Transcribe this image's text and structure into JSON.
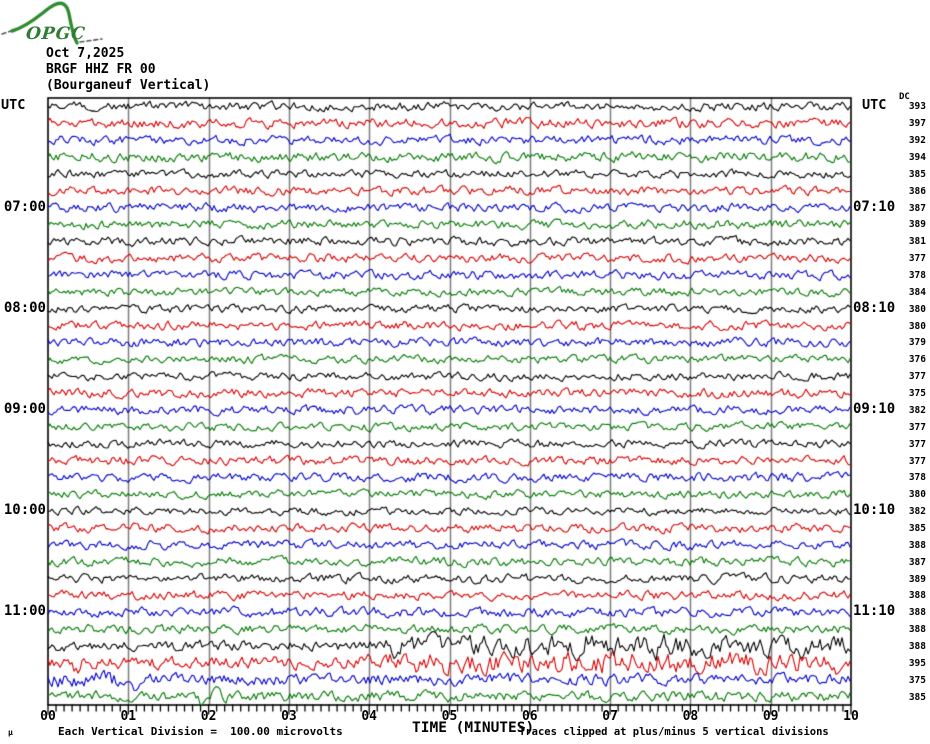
{
  "header": {
    "logo": "OPGC",
    "date": "Oct 7,2025",
    "station": "BRGF HHZ FR 00",
    "station_desc": "(Bourganeuf Vertical)"
  },
  "axis": {
    "utc_left": "UTC",
    "utc_right": "UTC",
    "dc_header": "DC",
    "x_title": "TIME (MINUTES)",
    "x_tick_labels": [
      "00",
      "01",
      "02",
      "03",
      "04",
      "05",
      "06",
      "07",
      "08",
      "09",
      "10"
    ],
    "left_hour_labels": [
      {
        "row": 7,
        "label": "07:00"
      },
      {
        "row": 13,
        "label": "08:00"
      },
      {
        "row": 19,
        "label": "09:00"
      },
      {
        "row": 25,
        "label": "10:00"
      },
      {
        "row": 31,
        "label": "11:00"
      }
    ],
    "right_hour_labels": [
      {
        "row": 7,
        "label": "07:10"
      },
      {
        "row": 13,
        "label": "08:10"
      },
      {
        "row": 19,
        "label": "09:10"
      },
      {
        "row": 25,
        "label": "10:10"
      },
      {
        "row": 31,
        "label": "11:10"
      }
    ]
  },
  "footer": {
    "micro_mark": "µ",
    "scale_note": "Each Vertical Division =  100.00 microvolts",
    "clip_note": "Traces clipped at plus/minus 5 vertical divisions"
  },
  "colors": {
    "black": "#000000",
    "red": "#d80000",
    "blue": "#0000cc",
    "green": "#007a00",
    "grid": "#7d7d7d",
    "border": "#000000",
    "logo_green": "#2e8b2e"
  },
  "chart_data": {
    "type": "line",
    "title": "BRGF HHZ FR 00 (Bourganeuf Vertical) helicorder, Oct 7,2025",
    "xlabel": "TIME (MINUTES)",
    "x_range_minutes": [
      0,
      10
    ],
    "minutes_per_row": 10,
    "rows_total": 36,
    "scale": "Each Vertical Division = 100.00 microvolts",
    "clipping": "Traces clipped at plus/minus 5 vertical divisions",
    "rows": [
      {
        "start": "06:00",
        "end": "06:10",
        "color": "black",
        "dc": 393,
        "amp": 1.0
      },
      {
        "start": "06:10",
        "end": "06:20",
        "color": "red",
        "dc": 397,
        "amp": 1.1
      },
      {
        "start": "06:20",
        "end": "06:30",
        "color": "blue",
        "dc": 392,
        "amp": 1.0
      },
      {
        "start": "06:30",
        "end": "06:40",
        "color": "green",
        "dc": 394,
        "amp": 1.1
      },
      {
        "start": "06:40",
        "end": "06:50",
        "color": "black",
        "dc": 385,
        "amp": 0.9
      },
      {
        "start": "06:50",
        "end": "07:00",
        "color": "red",
        "dc": 386,
        "amp": 1.0
      },
      {
        "start": "07:00",
        "end": "07:10",
        "color": "blue",
        "dc": 387,
        "amp": 1.0
      },
      {
        "start": "07:10",
        "end": "07:20",
        "color": "green",
        "dc": 389,
        "amp": 1.0
      },
      {
        "start": "07:20",
        "end": "07:30",
        "color": "black",
        "dc": 381,
        "amp": 1.0
      },
      {
        "start": "07:30",
        "end": "07:40",
        "color": "red",
        "dc": 377,
        "amp": 1.0
      },
      {
        "start": "07:40",
        "end": "07:50",
        "color": "blue",
        "dc": 378,
        "amp": 1.0
      },
      {
        "start": "07:50",
        "end": "08:00",
        "color": "green",
        "dc": 384,
        "amp": 0.9
      },
      {
        "start": "08:00",
        "end": "08:10",
        "color": "black",
        "dc": 380,
        "amp": 0.9
      },
      {
        "start": "08:10",
        "end": "08:20",
        "color": "red",
        "dc": 380,
        "amp": 1.0
      },
      {
        "start": "08:20",
        "end": "08:30",
        "color": "blue",
        "dc": 379,
        "amp": 1.0
      },
      {
        "start": "08:30",
        "end": "08:40",
        "color": "green",
        "dc": 376,
        "amp": 0.9
      },
      {
        "start": "08:40",
        "end": "08:50",
        "color": "black",
        "dc": 377,
        "amp": 0.9
      },
      {
        "start": "08:50",
        "end": "09:00",
        "color": "red",
        "dc": 375,
        "amp": 1.0
      },
      {
        "start": "09:00",
        "end": "09:10",
        "color": "blue",
        "dc": 382,
        "amp": 1.0
      },
      {
        "start": "09:10",
        "end": "09:20",
        "color": "green",
        "dc": 377,
        "amp": 0.9
      },
      {
        "start": "09:20",
        "end": "09:30",
        "color": "black",
        "dc": 377,
        "amp": 0.9
      },
      {
        "start": "09:30",
        "end": "09:40",
        "color": "red",
        "dc": 377,
        "amp": 1.0
      },
      {
        "start": "09:40",
        "end": "09:50",
        "color": "blue",
        "dc": 378,
        "amp": 1.0
      },
      {
        "start": "09:50",
        "end": "10:00",
        "color": "green",
        "dc": 380,
        "amp": 0.9
      },
      {
        "start": "10:00",
        "end": "10:10",
        "color": "black",
        "dc": 382,
        "amp": 0.9
      },
      {
        "start": "10:10",
        "end": "10:20",
        "color": "red",
        "dc": 385,
        "amp": 1.0
      },
      {
        "start": "10:20",
        "end": "10:30",
        "color": "blue",
        "dc": 388,
        "amp": 1.0
      },
      {
        "start": "10:30",
        "end": "10:40",
        "color": "green",
        "dc": 387,
        "amp": 1.0
      },
      {
        "start": "10:40",
        "end": "10:50",
        "color": "black",
        "dc": 389,
        "amp": 1.0
      },
      {
        "start": "10:50",
        "end": "11:00",
        "color": "red",
        "dc": 388,
        "amp": 1.0
      },
      {
        "start": "11:00",
        "end": "11:10",
        "color": "blue",
        "dc": 388,
        "amp": 1.1
      },
      {
        "start": "11:10",
        "end": "11:20",
        "color": "green",
        "dc": 388,
        "amp": 1.0
      },
      {
        "start": "11:20",
        "end": "11:30",
        "color": "black",
        "dc": 388,
        "amp": 1.2,
        "events": [
          {
            "from": 4.2,
            "to": 10,
            "amp": 1.9
          }
        ],
        "spikes": [
          {
            "at": 4.35,
            "amp": 13
          },
          {
            "at": 6.6,
            "amp": 14
          },
          {
            "at": 7.55,
            "amp": 12
          }
        ]
      },
      {
        "start": "11:30",
        "end": "11:40",
        "color": "red",
        "dc": 395,
        "amp": 1.4,
        "events": [
          {
            "from": 4.0,
            "to": 10,
            "amp": 1.8
          }
        ],
        "spikes": [
          {
            "at": 0.35,
            "amp": 8
          }
        ]
      },
      {
        "start": "11:40",
        "end": "11:50",
        "color": "blue",
        "dc": 375,
        "amp": 1.3,
        "events": [
          {
            "from": 0,
            "to": 0.9,
            "amp": 1.5
          }
        ],
        "spikes": [
          {
            "at": 1.1,
            "amp": 7
          }
        ]
      },
      {
        "start": "11:50",
        "end": "12:00",
        "color": "green",
        "dc": 385,
        "amp": 1.2,
        "spikes": [
          {
            "at": 1.95,
            "amp": 9
          }
        ]
      }
    ]
  }
}
